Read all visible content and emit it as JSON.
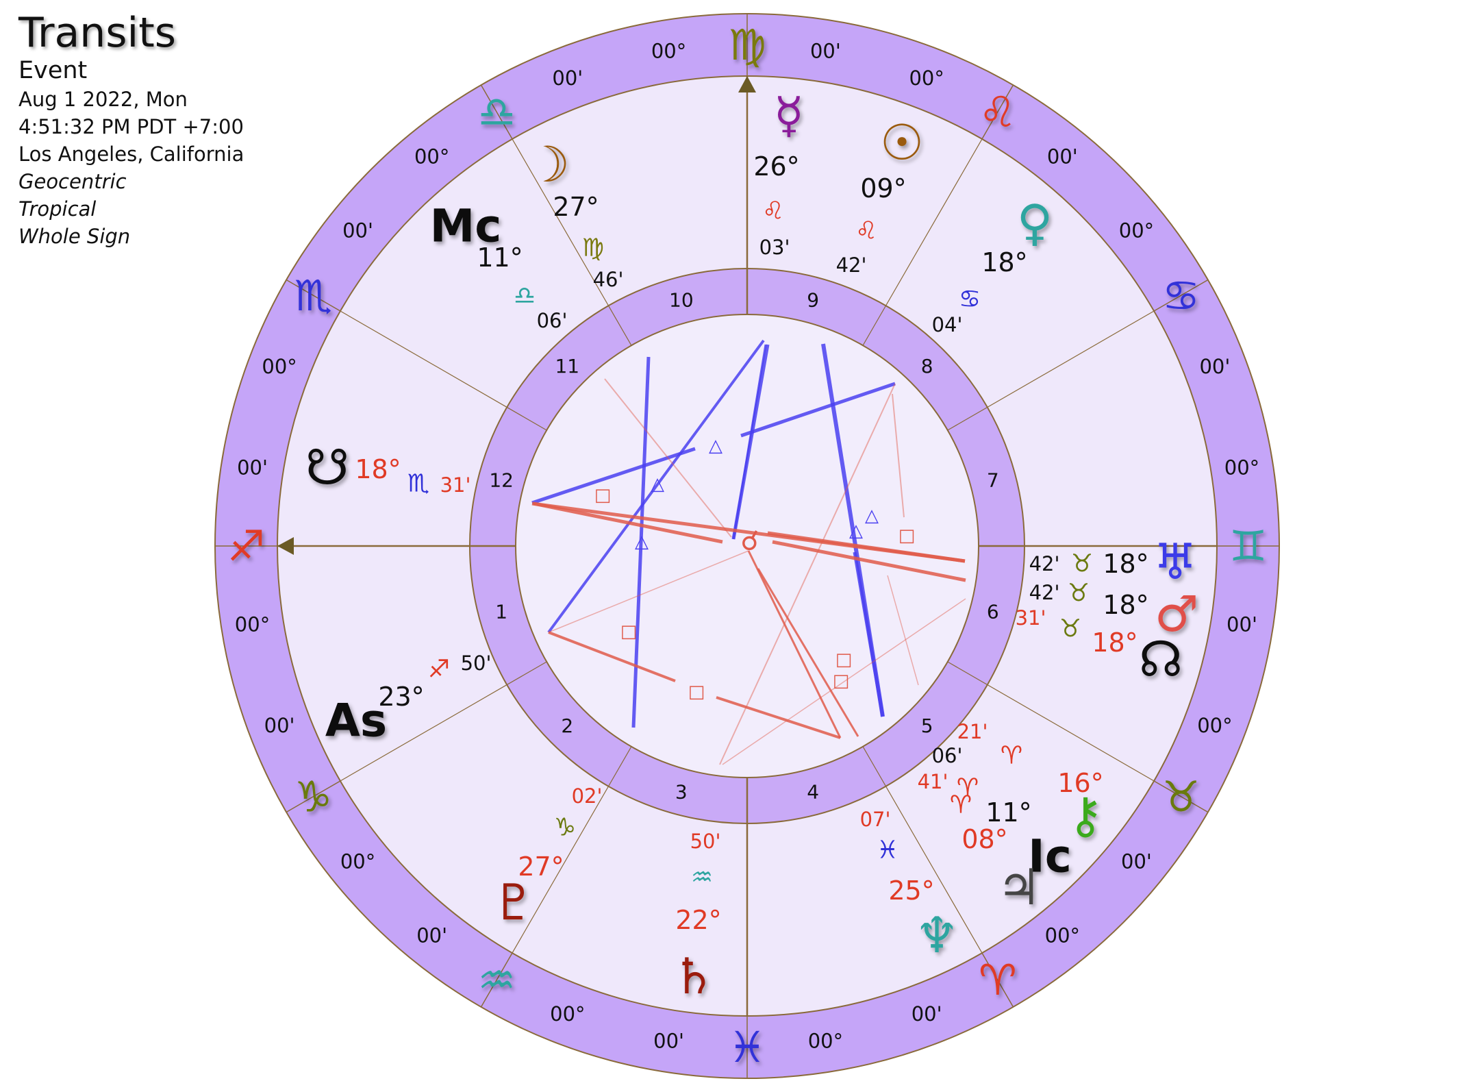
{
  "header": {
    "title": "Transits",
    "subtitle": "Event",
    "date": "Aug 1 2022, Mon",
    "time": "4:51:32 PM PDT +7:00",
    "location": "Los Angeles, California",
    "system1": "Geocentric",
    "system2": "Tropical",
    "system3": "Whole Sign"
  },
  "colors": {
    "zodiac_ring": "#c5a5f8",
    "inner_ring": "#c9aaf7",
    "house_field": "#efe8fb",
    "center_field": "#f2edfc",
    "border": "#8a6a3a",
    "trine": "#4a3ff0",
    "square": "#e05a4a",
    "axis_arrow": "#6b5a25"
  },
  "zodiac": [
    {
      "name": "Virgo",
      "glyph": "♍",
      "color": "#7a7a10",
      "deg": "00°",
      "min": "00'"
    },
    {
      "name": "Leo",
      "glyph": "♌",
      "color": "#e03a25",
      "deg": "00°",
      "min": "00'"
    },
    {
      "name": "Cancer",
      "glyph": "♋",
      "color": "#3030d8",
      "deg": "00°",
      "min": "00'"
    },
    {
      "name": "Gemini",
      "glyph": "♊",
      "color": "#2ea5a0",
      "deg": "00°",
      "min": "00'"
    },
    {
      "name": "Taurus",
      "glyph": "♉",
      "color": "#6b7a10",
      "deg": "00°",
      "min": "00'"
    },
    {
      "name": "Aries",
      "glyph": "♈",
      "color": "#e03a25",
      "deg": "00°",
      "min": "00'"
    },
    {
      "name": "Pisces",
      "glyph": "♓",
      "color": "#3030d8",
      "deg": "00°",
      "min": "00'"
    },
    {
      "name": "Aquarius",
      "glyph": "♒",
      "color": "#2ea5a0",
      "deg": "00°",
      "min": "00'"
    },
    {
      "name": "Capricorn",
      "glyph": "♑",
      "color": "#6b7a10",
      "deg": "00°",
      "min": "00'"
    },
    {
      "name": "Sagittarius",
      "glyph": "♐",
      "color": "#e03a25",
      "deg": "00°",
      "min": "00'"
    },
    {
      "name": "Scorpio",
      "glyph": "♏",
      "color": "#3030d8",
      "deg": "00°",
      "min": "00'"
    },
    {
      "name": "Libra",
      "glyph": "♎",
      "color": "#2ea5a0",
      "deg": "00°",
      "min": "00'"
    }
  ],
  "houses": [
    "10",
    "9",
    "8",
    "7",
    "6",
    "5",
    "4",
    "3",
    "2",
    "1",
    "12",
    "11"
  ],
  "planets": [
    {
      "name": "Mercury",
      "glyph": "☿",
      "color": "#8a1a9a",
      "deg": "26°",
      "sign": "♌",
      "sign_color": "#e03a25",
      "min": "03'",
      "deg_color": "#111"
    },
    {
      "name": "Sun",
      "glyph": "☉",
      "color": "#9a5a10",
      "deg": "09°",
      "sign": "♌",
      "sign_color": "#e03a25",
      "min": "42'",
      "deg_color": "#111"
    },
    {
      "name": "Venus",
      "glyph": "♀",
      "color": "#2ea5a0",
      "deg": "18°",
      "sign": "♋",
      "sign_color": "#3030d8",
      "min": "04'",
      "deg_color": "#111"
    },
    {
      "name": "Moon",
      "glyph": "☽",
      "color": "#9a5a10",
      "deg": "27°",
      "sign": "♍",
      "sign_color": "#7a7a10",
      "min": "46'",
      "deg_color": "#111"
    },
    {
      "name": "Midheaven",
      "glyph": "Mc",
      "color": "#111",
      "deg": "11°",
      "sign": "♎",
      "sign_color": "#2ea5a0",
      "min": "06'",
      "deg_color": "#111"
    },
    {
      "name": "South Node",
      "glyph": "☋",
      "color": "#111",
      "deg": "18°",
      "sign": "♏",
      "sign_color": "#3030d8",
      "min": "31'",
      "deg_color": "#e03a25"
    },
    {
      "name": "Ascendant",
      "glyph": "As",
      "color": "#111",
      "deg": "23°",
      "sign": "♐",
      "sign_color": "#e03a25",
      "min": "50'",
      "deg_color": "#111"
    },
    {
      "name": "Uranus",
      "glyph": "♅",
      "color": "#3a3ae8",
      "deg": "18°",
      "sign": "♉",
      "sign_color": "#6b7a10",
      "min": "42'",
      "deg_color": "#111"
    },
    {
      "name": "Mars",
      "glyph": "♂",
      "color": "#e0504a",
      "deg": "18°",
      "sign": "♉",
      "sign_color": "#6b7a10",
      "min": "42'",
      "deg_color": "#111"
    },
    {
      "name": "North Node",
      "glyph": "☊",
      "color": "#111",
      "deg": "18°",
      "sign": "♉",
      "sign_color": "#6b7a10",
      "min": "31'",
      "deg_color": "#e03a25"
    },
    {
      "name": "Chiron",
      "glyph": "⚷",
      "color": "#3aaa1a",
      "deg": "16°",
      "sign": "♈",
      "sign_color": "#e03a25",
      "min": "21'",
      "deg_color": "#e03a25"
    },
    {
      "name": "Imum Coeli",
      "glyph": "Ic",
      "color": "#111",
      "deg": "11°",
      "sign": "♈",
      "sign_color": "#e03a25",
      "min": "06'",
      "deg_color": "#111"
    },
    {
      "name": "Jupiter",
      "glyph": "♃",
      "color": "#444",
      "deg": "08°",
      "sign": "♈",
      "sign_color": "#e03a25",
      "min": "41'",
      "deg_color": "#e03a25"
    },
    {
      "name": "Neptune",
      "glyph": "♆",
      "color": "#2ea5a0",
      "deg": "25°",
      "sign": "♓",
      "sign_color": "#3030d8",
      "min": "07'",
      "deg_color": "#e03a25"
    },
    {
      "name": "Saturn",
      "glyph": "♄",
      "color": "#9a1a10",
      "deg": "22°",
      "sign": "♒",
      "sign_color": "#2ea5a0",
      "min": "50'",
      "deg_color": "#e03a25"
    },
    {
      "name": "Pluto",
      "glyph": "♇",
      "color": "#9a1a10",
      "deg": "27°",
      "sign": "♑",
      "sign_color": "#6b7a10",
      "min": "02'",
      "deg_color": "#e03a25"
    }
  ],
  "aspect_glyphs": {
    "trine": "△",
    "square": "□"
  }
}
